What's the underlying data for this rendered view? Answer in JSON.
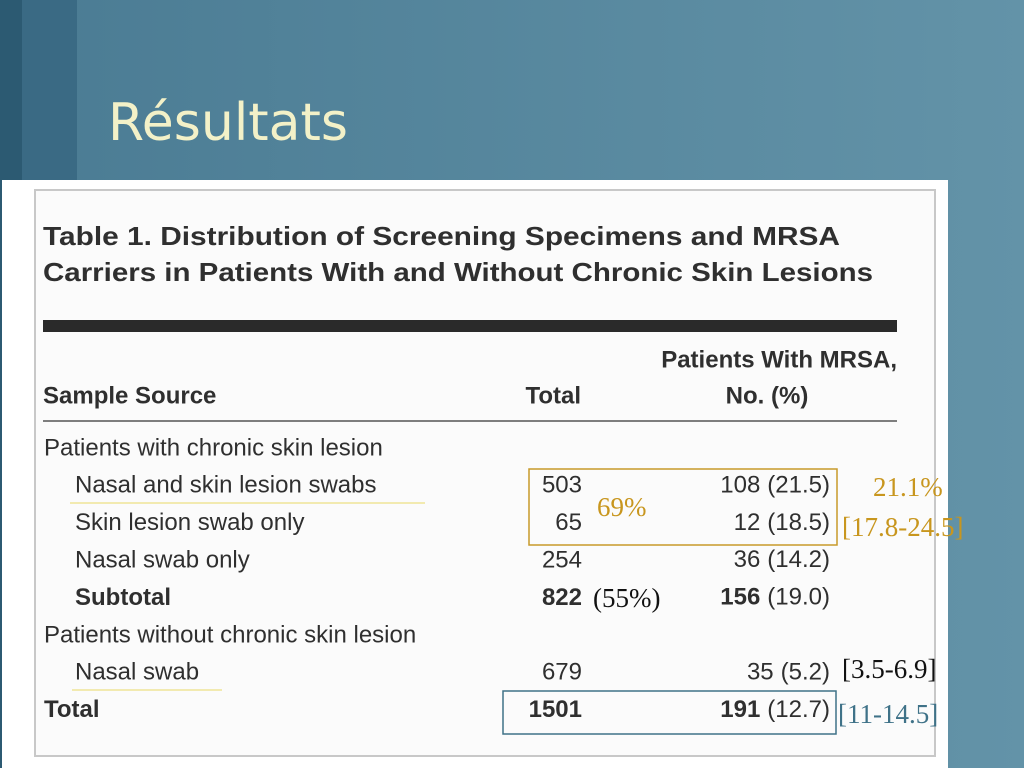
{
  "slide": {
    "title": "Résultats"
  },
  "table": {
    "title_lines": [
      "Table 1. Distribution of Screening Specimens and MRSA",
      "Carriers in Patients With and Without Chronic Skin Lesions"
    ],
    "header": {
      "sample_source": "Sample Source",
      "total": "Total",
      "mrsa_lines": [
        "Patients With MRSA,",
        "No. (%)"
      ]
    },
    "groups": [
      {
        "label": "Patients with chronic skin lesion",
        "rows": [
          {
            "label": "Nasal and skin lesion swabs",
            "total": 503,
            "mrsa": 108,
            "pct": "(21.5)"
          },
          {
            "label": "Skin lesion swab only",
            "total": 65,
            "mrsa": 12,
            "pct": "(18.5)"
          },
          {
            "label": "Nasal swab only",
            "total": 254,
            "mrsa": 36,
            "pct": "(14.2)"
          }
        ],
        "subtotal": {
          "label": "Subtotal",
          "total": 822,
          "mrsa": 156,
          "pct": "(19.0)"
        }
      },
      {
        "label": "Patients without chronic skin lesion",
        "rows": [
          {
            "label": "Nasal swab",
            "total": 679,
            "mrsa": 35,
            "pct": "(5.2)"
          }
        ]
      }
    ],
    "total": {
      "label": "Total",
      "total": 1501,
      "mrsa": 191,
      "pct": "(12.7)"
    }
  },
  "annotations": [
    "69%",
    "21.1%",
    "[17.8-24.5]",
    "(55%)",
    "[3.5-6.9]",
    "[11-14.5]"
  ]
}
